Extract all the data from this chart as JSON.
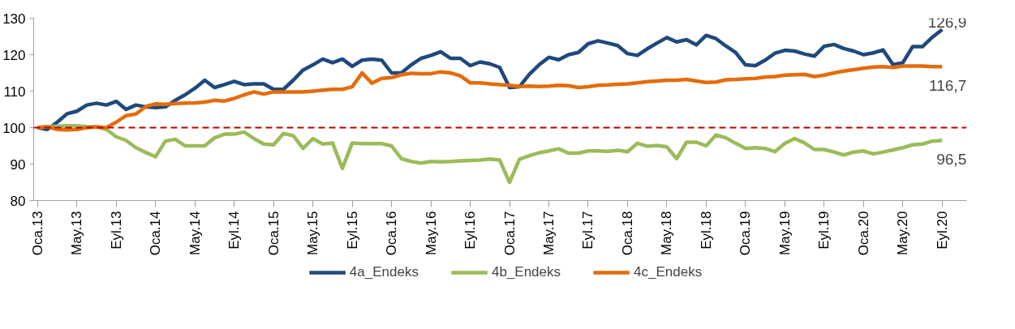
{
  "chart_data": {
    "type": "line",
    "categories": [
      "Oca.13",
      null,
      null,
      null,
      "May.13",
      null,
      null,
      null,
      "Eyl.13",
      null,
      null,
      null,
      "Oca.14",
      null,
      null,
      null,
      "May.14",
      null,
      null,
      null,
      "Eyl.14",
      null,
      null,
      null,
      "Oca.15",
      null,
      null,
      null,
      "May.15",
      null,
      null,
      null,
      "Eyl.15",
      null,
      null,
      null,
      "Oca.16",
      null,
      null,
      null,
      "May.16",
      null,
      null,
      null,
      "Eyl.16",
      null,
      null,
      null,
      "Oca.17",
      null,
      null,
      null,
      "May.17",
      null,
      null,
      null,
      "Eyl.17",
      null,
      null,
      null,
      "Oca.18",
      null,
      null,
      null,
      "May.18",
      null,
      null,
      null,
      "Eyl.18",
      null,
      null,
      null,
      "Oca.19",
      null,
      null,
      null,
      "May.19",
      null,
      null,
      null,
      "Eyl.19",
      null,
      null,
      null,
      "Oca.20",
      null,
      null,
      null,
      "May.20",
      null,
      null,
      null,
      "Eyl.20"
    ],
    "series": [
      {
        "name": "4a_Endeks",
        "color": "#1f497d",
        "values": [
          100,
          99.5,
          101.5,
          103.8,
          104.5,
          106.2,
          106.7,
          106.2,
          107.2,
          105,
          106.2,
          105.7,
          105.5,
          105.7,
          107.5,
          109,
          110.8,
          113,
          111,
          111.8,
          112.7,
          111.8,
          112,
          112,
          110.5,
          110.5,
          113,
          115.8,
          117.2,
          118.8,
          117.8,
          118.8,
          116.8,
          118.5,
          118.8,
          118.5,
          115,
          115,
          117.2,
          119,
          119.8,
          120.8,
          119,
          119,
          117,
          118,
          117.5,
          116.5,
          111,
          111.2,
          114.6,
          117.2,
          119.3,
          118.6,
          120,
          120.6,
          123,
          123.8,
          123.2,
          122.5,
          120.3,
          119.8,
          121.6,
          123.2,
          124.7,
          123.5,
          124.1,
          122.7,
          125.3,
          124.4,
          122.4,
          120.6,
          117.2,
          117,
          118.5,
          120.4,
          121.2,
          121,
          120.2,
          119.6,
          122.3,
          122.8,
          121.7,
          121,
          120,
          120.5,
          121.3,
          117.3,
          117.8,
          122.2,
          122.2,
          124.8,
          126.9
        ]
      },
      {
        "name": "4b_Endeks",
        "color": "#9bbb59",
        "values": [
          100,
          100.3,
          100.4,
          100.5,
          100.5,
          100.3,
          100.2,
          99.5,
          97.5,
          96.5,
          94.5,
          93.2,
          92,
          96.3,
          96.8,
          95,
          95,
          95,
          97.2,
          98.2,
          98.2,
          98.8,
          97,
          95.5,
          95.3,
          98.4,
          97.8,
          94.3,
          97,
          95.5,
          95.8,
          88.8,
          95.8,
          95.6,
          95.6,
          95.6,
          95,
          91.5,
          90.7,
          90.3,
          90.7,
          90.6,
          90.7,
          90.9,
          91,
          91.1,
          91.4,
          91.1,
          85,
          91.3,
          92.3,
          93.1,
          93.6,
          94.2,
          93,
          93,
          93.6,
          93.6,
          93.5,
          93.8,
          93.4,
          95.7,
          94.9,
          95.1,
          94.7,
          91.5,
          96,
          96,
          95,
          98,
          97.2,
          95.7,
          94.3,
          94.5,
          94.3,
          93.4,
          95.7,
          97,
          95.8,
          94,
          94,
          93.3,
          92.5,
          93.3,
          93.6,
          92.8,
          93.3,
          93.9,
          94.5,
          95.3,
          95.5,
          96.3,
          96.5
        ]
      },
      {
        "name": "4c_Endeks",
        "color": "#e46c0a",
        "values": [
          100,
          100.2,
          99.5,
          99.4,
          99.5,
          100,
          100.2,
          100,
          101.5,
          103.3,
          103.7,
          105.8,
          106.5,
          106.4,
          106.6,
          106.7,
          106.8,
          107,
          107.5,
          107.3,
          108,
          109,
          109.8,
          109.2,
          109.8,
          109.8,
          109.8,
          109.8,
          110,
          110.3,
          110.5,
          110.5,
          111.2,
          115,
          112.2,
          113.5,
          113.7,
          114.5,
          114.9,
          114.8,
          114.8,
          115.3,
          115,
          114.2,
          112.3,
          112.3,
          112,
          111.8,
          111.6,
          111.3,
          111.4,
          111.3,
          111.4,
          111.6,
          111.5,
          111,
          111.2,
          111.6,
          111.7,
          111.9,
          112,
          112.3,
          112.6,
          112.8,
          113,
          113,
          113.2,
          112.8,
          112.4,
          112.5,
          113.1,
          113.2,
          113.4,
          113.5,
          113.9,
          114,
          114.4,
          114.5,
          114.6,
          114,
          114.4,
          115,
          115.5,
          115.9,
          116.3,
          116.6,
          116.7,
          116.5,
          116.9,
          116.9,
          116.9,
          116.7,
          116.7
        ]
      }
    ],
    "ylim": [
      80,
      130
    ],
    "yticks": [
      80,
      90,
      100,
      110,
      120,
      130
    ],
    "ref_lines": [
      {
        "axis": "y",
        "value": 100,
        "color": "#c00000",
        "line_style": "dashed"
      }
    ],
    "annotations": [
      {
        "text": "126,9",
        "x": "Eyl.20",
        "y": 126.9
      },
      {
        "text": "116,7",
        "x": "Eyl.20",
        "y": 116.7
      },
      {
        "text": "96,5",
        "x": "Eyl.20",
        "y": 96.5
      }
    ],
    "grid": false,
    "legend": "bottom",
    "marker": "none",
    "line_style": "solid"
  }
}
